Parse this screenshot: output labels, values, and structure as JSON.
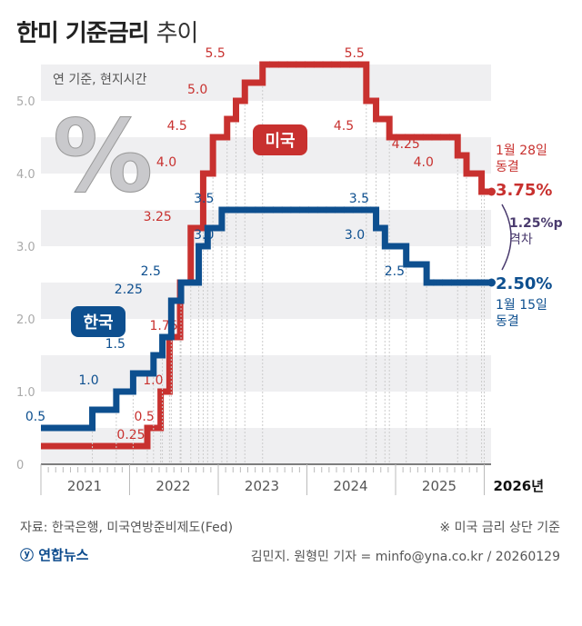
{
  "title": {
    "main": "한미 기준금리",
    "sub": "추이"
  },
  "note": "연 기준, 현지시간",
  "percent_symbol": "%",
  "colors": {
    "us": "#c8312f",
    "korea": "#0d4f8f",
    "gap": "#4a3b6e",
    "band": "#efeff1"
  },
  "chart_data": {
    "type": "line",
    "step": true,
    "xlim": [
      2021.0,
      2026.05
    ],
    "ylim": [
      0,
      5.5
    ],
    "yticks": [
      "0",
      "1.0",
      "2.0",
      "3.0",
      "4.0",
      "5.0"
    ],
    "ytick_values": [
      0,
      1,
      2,
      3,
      4,
      5
    ],
    "xticks": [
      "2021",
      "2022",
      "2023",
      "2024",
      "2025",
      "2026년"
    ],
    "xtick_values": [
      2021,
      2022,
      2023,
      2024,
      2025,
      2026
    ],
    "series": [
      {
        "name": "미국",
        "key": "us",
        "points": [
          [
            2021.0,
            0.25
          ],
          [
            2022.2,
            0.5
          ],
          [
            2022.35,
            1.0
          ],
          [
            2022.45,
            1.75
          ],
          [
            2022.57,
            2.5
          ],
          [
            2022.69,
            3.25
          ],
          [
            2022.83,
            4.0
          ],
          [
            2022.94,
            4.5
          ],
          [
            2023.1,
            4.75
          ],
          [
            2023.2,
            5.0
          ],
          [
            2023.3,
            5.25
          ],
          [
            2023.5,
            5.5
          ],
          [
            2024.67,
            5.0
          ],
          [
            2024.78,
            4.75
          ],
          [
            2024.93,
            4.5
          ],
          [
            2025.7,
            4.25
          ],
          [
            2025.8,
            4.0
          ],
          [
            2025.97,
            3.75
          ],
          [
            2026.0,
            3.75
          ]
        ],
        "labels": [
          {
            "text": "0.25",
            "x": 2022.2,
            "y": 0.25
          },
          {
            "text": "0.5",
            "x": 2022.35,
            "y": 0.5
          },
          {
            "text": "1.0",
            "x": 2022.45,
            "y": 1.0
          },
          {
            "text": "1.75",
            "x": 2022.57,
            "y": 1.75
          },
          {
            "text": "3.25",
            "x": 2022.5,
            "y": 3.25
          },
          {
            "text": "4.0",
            "x": 2022.6,
            "y": 4.0
          },
          {
            "text": "4.5",
            "x": 2022.72,
            "y": 4.5
          },
          {
            "text": "5.0",
            "x": 2022.95,
            "y": 5.0
          },
          {
            "text": "5.5",
            "x": 2023.15,
            "y": 5.5
          },
          {
            "text": "5.5",
            "x": 2024.72,
            "y": 5.5
          },
          {
            "text": "4.5",
            "x": 2024.6,
            "y": 4.5
          },
          {
            "text": "4.25",
            "x": 2025.3,
            "y": 4.25
          },
          {
            "text": "4.0",
            "x": 2025.5,
            "y": 4.0
          }
        ]
      },
      {
        "name": "한국",
        "key": "korea",
        "points": [
          [
            2021.0,
            0.5
          ],
          [
            2021.58,
            0.75
          ],
          [
            2021.85,
            1.0
          ],
          [
            2022.04,
            1.25
          ],
          [
            2022.27,
            1.5
          ],
          [
            2022.37,
            1.75
          ],
          [
            2022.47,
            2.25
          ],
          [
            2022.58,
            2.5
          ],
          [
            2022.78,
            3.0
          ],
          [
            2022.88,
            3.25
          ],
          [
            2023.04,
            3.5
          ],
          [
            2024.78,
            3.25
          ],
          [
            2024.88,
            3.0
          ],
          [
            2025.12,
            2.75
          ],
          [
            2025.35,
            2.5
          ],
          [
            2026.0,
            2.5
          ]
        ],
        "labels": [
          {
            "text": "0.5",
            "x": 2021.0,
            "y": 0.5
          },
          {
            "text": "1.0",
            "x": 2021.6,
            "y": 1.0
          },
          {
            "text": "1.5",
            "x": 2021.9,
            "y": 1.5
          },
          {
            "text": "2.25",
            "x": 2022.05,
            "y": 2.25
          },
          {
            "text": "2.5",
            "x": 2022.3,
            "y": 2.5
          },
          {
            "text": "3.0",
            "x": 2022.9,
            "y": 3.0
          },
          {
            "text": "3.5",
            "x": 2022.9,
            "y": 3.5
          },
          {
            "text": "3.5",
            "x": 2024.65,
            "y": 3.5
          },
          {
            "text": "3.0",
            "x": 2024.6,
            "y": 3.0
          },
          {
            "text": "2.5",
            "x": 2025.05,
            "y": 2.5
          }
        ]
      }
    ],
    "callouts": {
      "us": {
        "label": "미국",
        "date": "1월 28일",
        "status": "동결",
        "value": "3.75%"
      },
      "korea": {
        "label": "한국",
        "date": "1월 15일",
        "status": "동결",
        "value": "2.50%"
      },
      "gap": {
        "value": "1.25%p",
        "label": "격차"
      }
    }
  },
  "footer": {
    "source": "자료: 한국은행, 미국연방준비제도(Fed)",
    "note": "※ 미국 금리 상단 기준",
    "logo": "연합뉴스",
    "credit": "김민지. 원형민 기자 = minfo@yna.co.kr / 20260129"
  }
}
